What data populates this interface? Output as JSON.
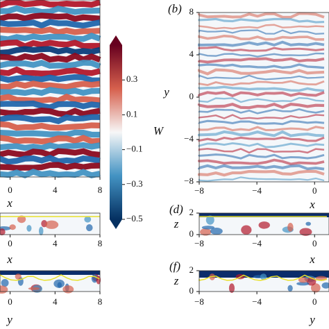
{
  "chart_data": [
    {
      "type": "field",
      "xlabel": "x",
      "xlim": [
        -0.9,
        8
      ],
      "xticks": [
        0,
        4,
        8
      ]
    },
    {
      "type": "colorbar",
      "label": "W",
      "ylim": [
        -0.5,
        0.5
      ],
      "yticks": [
        0.3,
        0.1,
        {
          "value": -0.1,
          "label": "−0.1"
        },
        {
          "value": -0.3,
          "label": "−0.3"
        },
        {
          "value": -0.5,
          "label": "−0.5"
        }
      ]
    },
    {
      "type": "field",
      "panel": "(b)",
      "xlabel": "x",
      "ylabel": "y",
      "xlim": [
        -8,
        1
      ],
      "ylim": [
        -8,
        8
      ],
      "xticks": [
        {
          "value": -8,
          "label": "−8"
        },
        {
          "value": -4,
          "label": "−4"
        },
        0
      ],
      "yticks": [
        8,
        4,
        0,
        {
          "value": -4,
          "label": "−4"
        },
        {
          "value": -8,
          "label": "−8"
        }
      ]
    },
    {
      "type": "side",
      "xlabel": "x",
      "xlim": [
        -0.9,
        8
      ],
      "xticks": [
        0,
        4,
        8
      ]
    },
    {
      "type": "side",
      "panel": "(d)",
      "xlabel": "x",
      "ylabel": "z",
      "xlim": [
        -8,
        1
      ],
      "ylim": [
        0,
        2
      ],
      "xticks": [
        {
          "value": -8,
          "label": "−8"
        },
        {
          "value": -4,
          "label": "−4"
        },
        0
      ],
      "yticks": [
        2,
        0
      ]
    },
    {
      "type": "side",
      "xlabel": "y",
      "xlim": [
        -0.9,
        8
      ],
      "xticks": [
        0,
        4,
        8
      ]
    },
    {
      "type": "side",
      "panel": "(f)",
      "xlabel": "y",
      "ylabel": "z",
      "xlim": [
        -8,
        1
      ],
      "ylim": [
        0,
        2
      ],
      "xticks": [
        {
          "value": -8,
          "label": "−8"
        },
        {
          "value": -4,
          "label": "−4"
        },
        0
      ],
      "yticks": [
        2,
        0
      ]
    }
  ]
}
